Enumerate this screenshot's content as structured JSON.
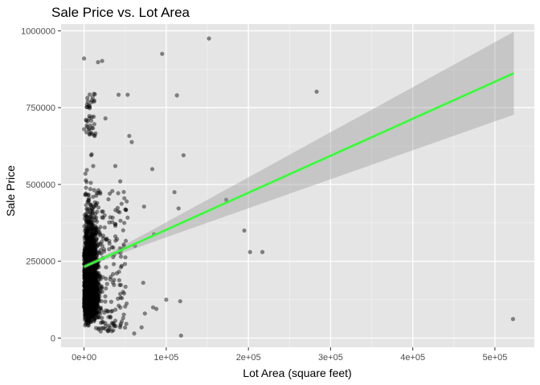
{
  "chart_data": {
    "type": "scatter",
    "title": "Sale Price vs. Lot Area",
    "xlabel": "Lot Area (square feet)",
    "ylabel": "Sale Price",
    "xlim": [
      -28000,
      548000
    ],
    "ylim": [
      -30000,
      1022000
    ],
    "x_ticks": [
      0,
      100000,
      200000,
      300000,
      400000,
      500000
    ],
    "x_tick_labels": [
      "0e+00",
      "1e+05",
      "2e+05",
      "3e+05",
      "4e+05",
      "5e+05"
    ],
    "y_ticks": [
      0,
      250000,
      500000,
      750000,
      1000000
    ],
    "y_tick_labels": [
      "0",
      "250000",
      "500000",
      "750000",
      "1000000"
    ],
    "grid": true,
    "background": "#e5e5e5",
    "point_color": "#000000",
    "point_alpha": 0.45,
    "fit": {
      "method": "lm",
      "color": "#33ff33",
      "band_color": "#999999",
      "x": [
        0,
        523000
      ],
      "y": [
        232000,
        862000
      ],
      "band_lower_at_x_max": 728000,
      "band_upper_at_x_max": 998000
    },
    "outliers": [
      {
        "x": 152000,
        "y": 975000
      },
      {
        "x": 95000,
        "y": 925000
      },
      {
        "x": 0,
        "y": 910000
      },
      {
        "x": 17000,
        "y": 898000
      },
      {
        "x": 22000,
        "y": 902000
      },
      {
        "x": 283000,
        "y": 802000
      },
      {
        "x": 113000,
        "y": 790000
      },
      {
        "x": 42000,
        "y": 792000
      },
      {
        "x": 53000,
        "y": 792000
      },
      {
        "x": 55000,
        "y": 658000
      },
      {
        "x": 58000,
        "y": 638000
      },
      {
        "x": 121000,
        "y": 595000
      },
      {
        "x": 83000,
        "y": 550000
      },
      {
        "x": 110000,
        "y": 475000
      },
      {
        "x": 173000,
        "y": 450000
      },
      {
        "x": 73000,
        "y": 428000
      },
      {
        "x": 115000,
        "y": 422000
      },
      {
        "x": 53000,
        "y": 392000
      },
      {
        "x": 85000,
        "y": 338000
      },
      {
        "x": 195000,
        "y": 350000
      },
      {
        "x": 202000,
        "y": 280000
      },
      {
        "x": 217000,
        "y": 280000
      },
      {
        "x": 72000,
        "y": 180000
      },
      {
        "x": 100000,
        "y": 125000
      },
      {
        "x": 117000,
        "y": 120000
      },
      {
        "x": 84000,
        "y": 100000
      },
      {
        "x": 88000,
        "y": 95000
      },
      {
        "x": 74000,
        "y": 80000
      },
      {
        "x": 70000,
        "y": 35000
      },
      {
        "x": 61000,
        "y": 15000
      },
      {
        "x": 118000,
        "y": 8000
      },
      {
        "x": 522000,
        "y": 62000
      },
      {
        "x": 0,
        "y": 680000
      },
      {
        "x": 26000,
        "y": 715000
      },
      {
        "x": 38000,
        "y": 560000
      },
      {
        "x": 44000,
        "y": 510000
      },
      {
        "x": 49000,
        "y": 455000
      },
      {
        "x": 62000,
        "y": 300000
      },
      {
        "x": 46000,
        "y": 130000
      },
      {
        "x": 36000,
        "y": 40000
      }
    ]
  }
}
